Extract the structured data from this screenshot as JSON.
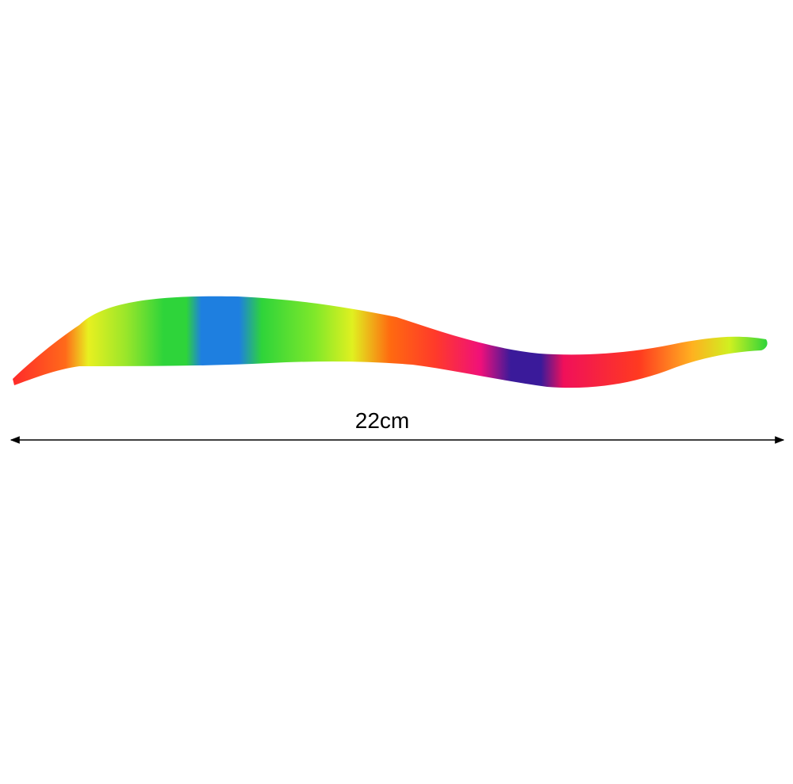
{
  "measurement": {
    "label": "22cm"
  }
}
